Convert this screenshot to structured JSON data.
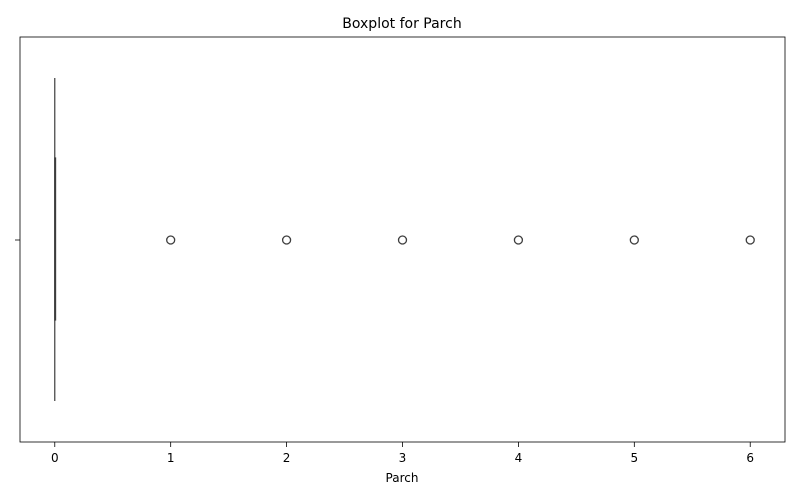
{
  "chart_data": {
    "type": "boxplot",
    "title": "Boxplot for Parch",
    "xlabel": "Parch",
    "ylabel": "",
    "orientation": "horizontal",
    "xlim": [
      -0.3,
      6.3
    ],
    "xticks": [
      0,
      1,
      2,
      3,
      4,
      5,
      6
    ],
    "xtick_labels": [
      "0",
      "1",
      "2",
      "3",
      "4",
      "5",
      "6"
    ],
    "grid": false,
    "box": {
      "min": 0,
      "q1": 0,
      "median": 0,
      "q3": 0,
      "max": 0
    },
    "outliers": [
      1,
      2,
      3,
      4,
      5,
      6
    ],
    "colors": {
      "box": "#3d3d3d",
      "outlier_edge": "#3d3d3d",
      "axis": "#000000"
    }
  }
}
